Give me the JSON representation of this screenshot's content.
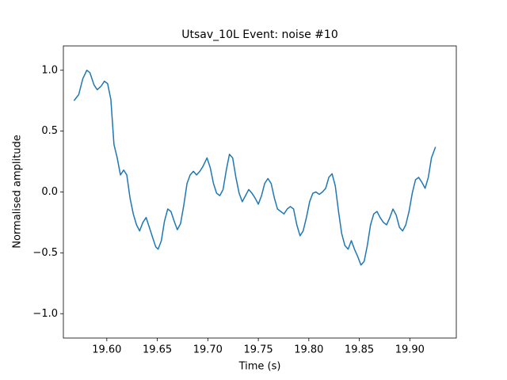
{
  "chart_data": {
    "type": "line",
    "title": "Utsav_10L Event: noise #10",
    "x_label": "Time (s)",
    "y_label": "Normalised amplitude",
    "x": [
      19.5675,
      19.5722,
      19.5762,
      19.5802,
      19.5833,
      19.5873,
      19.5905,
      19.5944,
      19.5976,
      19.6008,
      19.604,
      19.6071,
      19.6103,
      19.6135,
      19.6167,
      19.6198,
      19.623,
      19.6262,
      19.6294,
      19.6325,
      19.6357,
      19.6389,
      19.6421,
      19.6452,
      19.6484,
      19.6508,
      19.654,
      19.6571,
      19.6603,
      19.6635,
      19.6667,
      19.6698,
      19.673,
      19.6762,
      19.6794,
      19.6825,
      19.6857,
      19.6889,
      19.6921,
      19.6952,
      19.6992,
      19.7024,
      19.7056,
      19.7087,
      19.7119,
      19.7151,
      19.7183,
      19.7214,
      19.7246,
      19.7278,
      19.731,
      19.7341,
      19.7373,
      19.7405,
      19.7437,
      19.7468,
      19.75,
      19.7532,
      19.7563,
      19.7595,
      19.7627,
      19.7659,
      19.769,
      19.7722,
      19.7754,
      19.7786,
      19.7817,
      19.7849,
      19.7881,
      19.7913,
      19.7944,
      19.7976,
      19.8008,
      19.804,
      19.8071,
      19.8103,
      19.8135,
      19.8167,
      19.8198,
      19.823,
      19.8262,
      19.8294,
      19.8325,
      19.8357,
      19.8389,
      19.8421,
      19.8452,
      19.8484,
      19.8516,
      19.8548,
      19.8579,
      19.8611,
      19.8643,
      19.8675,
      19.8706,
      19.8738,
      19.877,
      19.8802,
      19.8833,
      19.8865,
      19.8897,
      19.8929,
      19.896,
      19.8992,
      19.9024,
      19.9056,
      19.9087,
      19.9119,
      19.9151,
      19.9183,
      19.9214,
      19.9254
    ],
    "series": [
      {
        "color": "#1f77b4",
        "values": [
          0.75,
          0.8,
          0.93,
          1.0,
          0.98,
          0.88,
          0.84,
          0.87,
          0.91,
          0.89,
          0.76,
          0.39,
          0.28,
          0.14,
          0.18,
          0.14,
          -0.05,
          -0.18,
          -0.27,
          -0.32,
          -0.25,
          -0.21,
          -0.29,
          -0.37,
          -0.45,
          -0.47,
          -0.4,
          -0.24,
          -0.14,
          -0.16,
          -0.24,
          -0.31,
          -0.26,
          -0.11,
          0.07,
          0.14,
          0.17,
          0.14,
          0.17,
          0.21,
          0.28,
          0.2,
          0.07,
          -0.01,
          -0.03,
          0.02,
          0.18,
          0.31,
          0.28,
          0.12,
          -0.01,
          -0.08,
          -0.03,
          0.02,
          -0.01,
          -0.05,
          -0.1,
          -0.03,
          0.07,
          0.11,
          0.07,
          -0.05,
          -0.14,
          -0.16,
          -0.18,
          -0.14,
          -0.12,
          -0.14,
          -0.27,
          -0.36,
          -0.32,
          -0.21,
          -0.08,
          -0.01,
          0.0,
          -0.02,
          0.0,
          0.03,
          0.12,
          0.15,
          0.05,
          -0.16,
          -0.34,
          -0.44,
          -0.47,
          -0.4,
          -0.47,
          -0.53,
          -0.6,
          -0.57,
          -0.44,
          -0.27,
          -0.18,
          -0.16,
          -0.21,
          -0.25,
          -0.27,
          -0.21,
          -0.14,
          -0.19,
          -0.29,
          -0.32,
          -0.27,
          -0.16,
          -0.01,
          0.1,
          0.12,
          0.08,
          0.03,
          0.12,
          0.28,
          0.37
        ]
      }
    ],
    "xlim": [
      19.557,
      19.946
    ],
    "ylim": [
      -1.2,
      1.2
    ],
    "xticks": [
      {
        "value": 19.6,
        "label": "19.60"
      },
      {
        "value": 19.65,
        "label": "19.65"
      },
      {
        "value": 19.7,
        "label": "19.70"
      },
      {
        "value": 19.75,
        "label": "19.75"
      },
      {
        "value": 19.8,
        "label": "19.80"
      },
      {
        "value": 19.85,
        "label": "19.85"
      },
      {
        "value": 19.9,
        "label": "19.90"
      }
    ],
    "yticks": [
      {
        "value": -1.0,
        "label": "−1.0"
      },
      {
        "value": -0.5,
        "label": "−0.5"
      },
      {
        "value": 0.0,
        "label": "0.0"
      },
      {
        "value": 0.5,
        "label": "0.5"
      },
      {
        "value": 1.0,
        "label": "1.0"
      }
    ],
    "grid": false
  }
}
